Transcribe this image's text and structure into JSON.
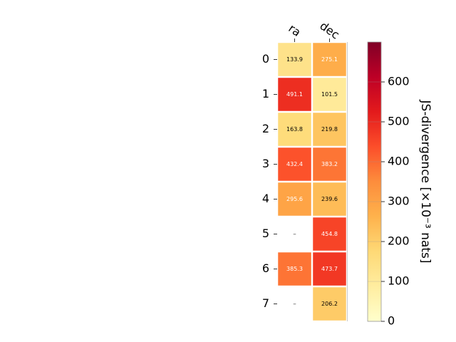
{
  "chart_data": {
    "type": "heatmap",
    "columns": [
      "ra",
      "dec"
    ],
    "rows": [
      "0",
      "1",
      "2",
      "3",
      "4",
      "5",
      "6",
      "7"
    ],
    "values": [
      [
        133.9,
        275.1
      ],
      [
        491.1,
        101.5
      ],
      [
        163.8,
        219.8
      ],
      [
        432.4,
        383.2
      ],
      [
        295.6,
        239.6
      ],
      [
        null,
        454.8
      ],
      [
        385.3,
        473.7
      ],
      [
        null,
        206.2
      ]
    ],
    "missing_label": "–",
    "colorbar": {
      "label": "JS-divergence [×10⁻³ nats]",
      "range": [
        0,
        700
      ],
      "ticks": [
        0,
        100,
        200,
        300,
        400,
        500,
        600
      ],
      "colormap": "YlOrRd",
      "position": "right"
    }
  }
}
